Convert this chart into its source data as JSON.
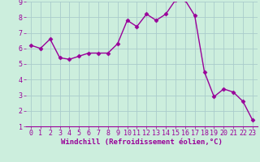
{
  "x": [
    0,
    1,
    2,
    3,
    4,
    5,
    6,
    7,
    8,
    9,
    10,
    11,
    12,
    13,
    14,
    15,
    16,
    17,
    18,
    19,
    20,
    21,
    22,
    23
  ],
  "y": [
    6.2,
    6.0,
    6.6,
    5.4,
    5.3,
    5.5,
    5.7,
    5.7,
    5.7,
    6.3,
    7.8,
    7.4,
    8.2,
    7.8,
    8.2,
    9.1,
    9.1,
    8.1,
    4.5,
    2.9,
    3.4,
    3.2,
    2.6,
    1.4
  ],
  "line_color": "#990099",
  "marker": "D",
  "marker_size": 2.5,
  "line_width": 1.0,
  "bg_color": "#cceedd",
  "grid_color": "#aacccc",
  "xlabel": "Windchill (Refroidissement éolien,°C)",
  "xlabel_color": "#990099",
  "xlabel_fontsize": 6.5,
  "tick_color": "#990099",
  "tick_fontsize": 6.0,
  "ylim": [
    1,
    9
  ],
  "xlim": [
    -0.5,
    23.5
  ],
  "yticks": [
    1,
    2,
    3,
    4,
    5,
    6,
    7,
    8,
    9
  ],
  "xticks": [
    0,
    1,
    2,
    3,
    4,
    5,
    6,
    7,
    8,
    9,
    10,
    11,
    12,
    13,
    14,
    15,
    16,
    17,
    18,
    19,
    20,
    21,
    22,
    23
  ]
}
